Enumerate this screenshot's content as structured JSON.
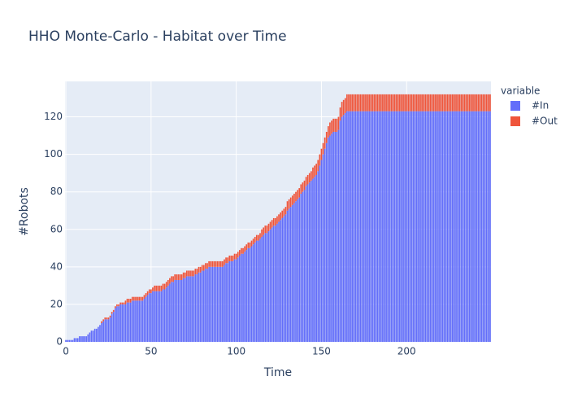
{
  "chart_data": {
    "type": "bar",
    "stacked": true,
    "title": "HHO Monte-Carlo  - Habitat over Time",
    "x_label": "Time",
    "y_label": "#Robots",
    "legend_title": "variable",
    "legend_position": "right-top",
    "xlim": [
      -0.5,
      249.5
    ],
    "xticks": [
      0,
      50,
      100,
      150,
      200
    ],
    "ylim": [
      0,
      138.9
    ],
    "yticks": [
      0,
      20,
      40,
      60,
      80,
      100,
      120
    ],
    "grid": true,
    "series": [
      {
        "name": "#In",
        "color": "#636efa",
        "values": [
          1,
          1,
          1,
          1,
          1,
          2,
          2,
          2,
          3,
          3,
          3,
          3,
          3,
          4,
          5,
          6,
          6,
          7,
          7,
          8,
          9,
          10,
          11,
          12,
          12,
          12,
          13,
          15,
          16,
          18,
          19,
          19,
          20,
          20,
          20,
          20,
          21,
          21,
          21,
          22,
          22,
          22,
          22,
          22,
          22,
          22,
          23,
          24,
          25,
          26,
          26,
          27,
          27,
          27,
          27,
          27,
          27,
          28,
          28,
          29,
          30,
          31,
          32,
          32,
          33,
          33,
          33,
          33,
          33,
          34,
          34,
          35,
          35,
          35,
          35,
          35,
          36,
          36,
          37,
          37,
          38,
          38,
          39,
          39,
          40,
          40,
          40,
          40,
          40,
          40,
          40,
          40,
          40,
          41,
          42,
          42,
          43,
          43,
          43,
          44,
          44,
          45,
          46,
          47,
          47,
          48,
          49,
          50,
          50,
          51,
          52,
          53,
          54,
          54,
          55,
          56,
          57,
          58,
          58,
          59,
          60,
          61,
          62,
          62,
          63,
          64,
          65,
          66,
          67,
          68,
          70,
          71,
          72,
          73,
          74,
          75,
          76,
          77,
          79,
          80,
          81,
          83,
          84,
          85,
          86,
          87,
          88,
          89,
          91,
          94,
          97,
          100,
          103,
          106,
          109,
          110,
          111,
          112,
          112,
          112,
          113,
          118,
          120,
          121,
          122,
          123,
          123,
          123,
          123,
          123,
          123,
          123,
          123,
          123,
          123,
          123,
          123,
          123,
          123,
          123,
          123,
          123,
          123,
          123,
          123,
          123,
          123,
          123,
          123,
          123,
          123,
          123,
          123,
          123,
          123,
          123,
          123,
          123,
          123,
          123,
          123,
          123,
          123,
          123,
          123,
          123,
          123,
          123,
          123,
          123,
          123,
          123,
          123,
          123,
          123,
          123,
          123,
          123,
          123,
          123,
          123,
          123,
          123,
          123,
          123,
          123,
          123,
          123,
          123,
          123,
          123,
          123,
          123,
          123,
          123,
          123,
          123,
          123,
          123,
          123,
          123,
          123,
          123,
          123,
          123,
          123,
          123,
          123,
          123,
          123
        ]
      },
      {
        "name": "#Out",
        "color": "#EF553B",
        "values": [
          0,
          0,
          0,
          0,
          0,
          0,
          0,
          0,
          0,
          0,
          0,
          0,
          0,
          0,
          0,
          0,
          0,
          0,
          0,
          0,
          0,
          1,
          1,
          1,
          1,
          1,
          1,
          1,
          1,
          1,
          1,
          1,
          1,
          1,
          1,
          2,
          2,
          2,
          2,
          2,
          2,
          2,
          2,
          2,
          2,
          2,
          2,
          2,
          2,
          2,
          2,
          2,
          3,
          3,
          3,
          3,
          3,
          3,
          3,
          3,
          3,
          3,
          3,
          3,
          3,
          3,
          3,
          3,
          3,
          3,
          3,
          3,
          3,
          3,
          3,
          3,
          3,
          3,
          3,
          3,
          3,
          3,
          3,
          3,
          3,
          3,
          3,
          3,
          3,
          3,
          3,
          3,
          3,
          3,
          3,
          3,
          3,
          3,
          3,
          3,
          3,
          3,
          3,
          3,
          3,
          3,
          3,
          3,
          3,
          3,
          3,
          3,
          3,
          3,
          3,
          4,
          4,
          4,
          4,
          4,
          4,
          4,
          4,
          4,
          4,
          4,
          4,
          4,
          4,
          4,
          5,
          5,
          5,
          5,
          5,
          5,
          5,
          5,
          5,
          5,
          5,
          5,
          5,
          5,
          5,
          6,
          6,
          6,
          6,
          6,
          6,
          6,
          6,
          6,
          6,
          7,
          7,
          7,
          7,
          7,
          7,
          7,
          8,
          8,
          8,
          9,
          9,
          9,
          9,
          9,
          9,
          9,
          9,
          9,
          9,
          9,
          9,
          9,
          9,
          9,
          9,
          9,
          9,
          9,
          9,
          9,
          9,
          9,
          9,
          9,
          9,
          9,
          9,
          9,
          9,
          9,
          9,
          9,
          9,
          9,
          9,
          9,
          9,
          9,
          9,
          9,
          9,
          9,
          9,
          9,
          9,
          9,
          9,
          9,
          9,
          9,
          9,
          9,
          9,
          9,
          9,
          9,
          9,
          9,
          9,
          9,
          9,
          9,
          9,
          9,
          9,
          9,
          9,
          9,
          9,
          9,
          9,
          9,
          9,
          9,
          9,
          9,
          9,
          9,
          9,
          9,
          9,
          9,
          9,
          9
        ]
      }
    ]
  }
}
